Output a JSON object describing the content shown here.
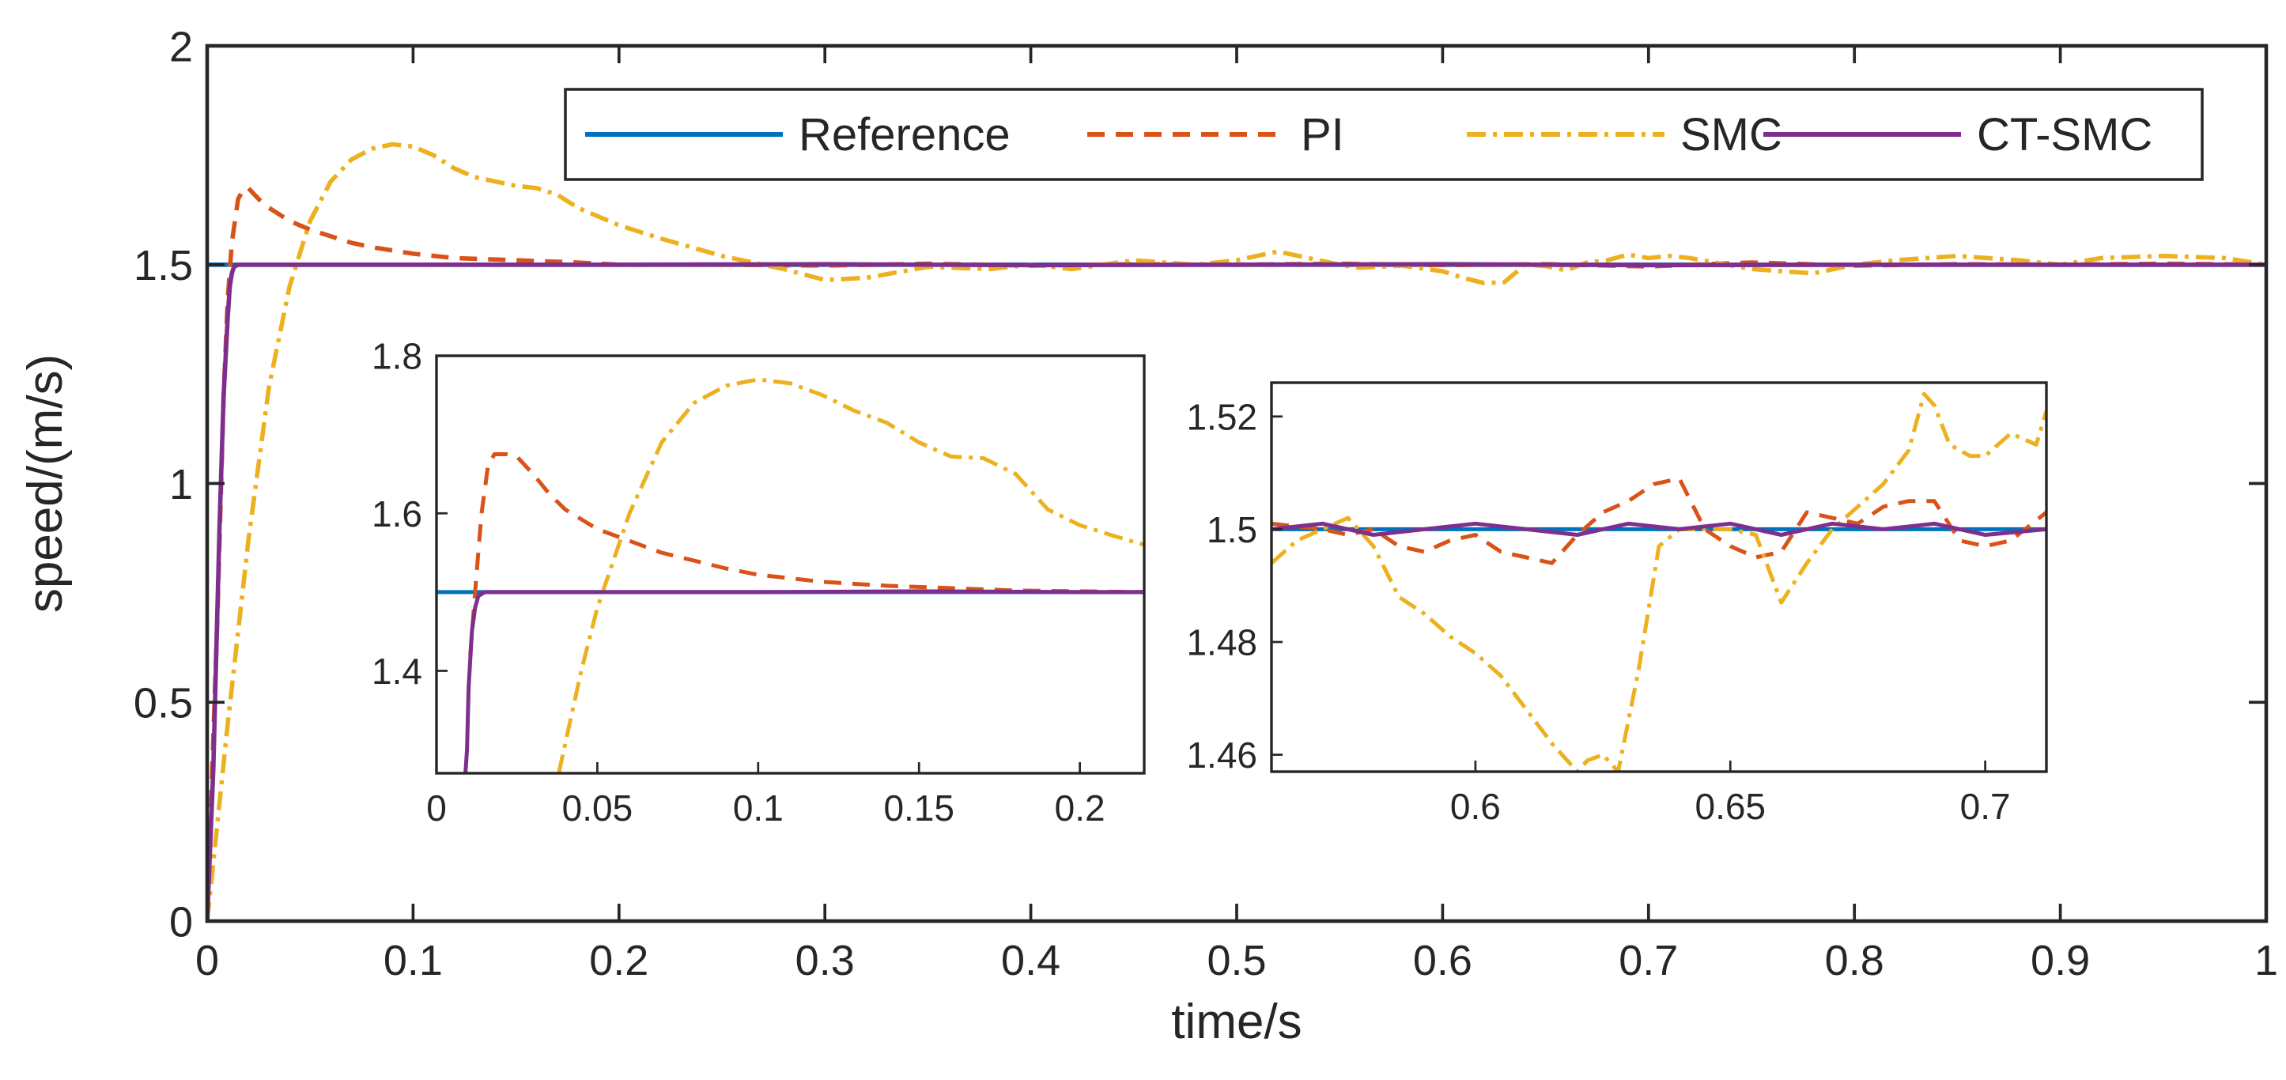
{
  "colors": {
    "reference": "#0072BD",
    "pi": "#D95319",
    "smc": "#EDB120",
    "ctsmc": "#7E2F8E",
    "axis": "#262626"
  },
  "chart_data": [
    {
      "id": "main",
      "type": "line",
      "xlabel": "time/s",
      "ylabel": "speed/(m/s)",
      "xlim": [
        0,
        1
      ],
      "ylim": [
        0,
        2
      ],
      "xticks": [
        0,
        0.1,
        0.2,
        0.3,
        0.4,
        0.5,
        0.6,
        0.7,
        0.8,
        0.9,
        1
      ],
      "xtick_labels": [
        "0",
        "0.1",
        "0.2",
        "0.3",
        "0.4",
        "0.5",
        "0.6",
        "0.7",
        "0.8",
        "0.9",
        "1"
      ],
      "yticks": [
        0,
        0.5,
        1,
        1.5,
        2
      ],
      "ytick_labels": [
        "0",
        "0.5",
        "1",
        "1.5",
        "2"
      ],
      "legend": {
        "placement": "top-right",
        "orientation": "horizontal",
        "entries": [
          "Reference",
          "PI",
          "SMC",
          "CT-SMC"
        ]
      },
      "series": [
        {
          "name": "Reference",
          "style": "solid",
          "x": [
            0,
            1
          ],
          "y": [
            1.5,
            1.5
          ]
        },
        {
          "name": "PI",
          "style": "dashed",
          "x": [
            0,
            0.005,
            0.008,
            0.01,
            0.012,
            0.015,
            0.018,
            0.02,
            0.025,
            0.03,
            0.04,
            0.05,
            0.06,
            0.07,
            0.08,
            0.1,
            0.12,
            0.15,
            0.18,
            0.2,
            0.25,
            0.3,
            0.35,
            0.4,
            0.45,
            0.5,
            0.55,
            0.6,
            0.65,
            0.7,
            0.75,
            0.8,
            0.85,
            0.9,
            0.95,
            1.0
          ],
          "y": [
            0,
            0.7,
            1.2,
            1.42,
            1.55,
            1.65,
            1.675,
            1.675,
            1.65,
            1.63,
            1.6,
            1.58,
            1.565,
            1.55,
            1.54,
            1.525,
            1.515,
            1.51,
            1.505,
            1.5,
            1.5,
            1.498,
            1.502,
            1.498,
            1.501,
            1.5,
            1.502,
            1.499,
            1.501,
            1.496,
            1.505,
            1.498,
            1.501,
            1.5,
            1.502,
            1.5
          ]
        },
        {
          "name": "SMC",
          "style": "dash-dot",
          "x": [
            0,
            0.01,
            0.02,
            0.03,
            0.04,
            0.05,
            0.06,
            0.07,
            0.08,
            0.09,
            0.1,
            0.11,
            0.12,
            0.13,
            0.14,
            0.15,
            0.16,
            0.17,
            0.18,
            0.2,
            0.22,
            0.25,
            0.28,
            0.3,
            0.32,
            0.35,
            0.38,
            0.4,
            0.42,
            0.45,
            0.48,
            0.5,
            0.52,
            0.55,
            0.56,
            0.58,
            0.6,
            0.61,
            0.62,
            0.63,
            0.64,
            0.65,
            0.66,
            0.67,
            0.68,
            0.69,
            0.7,
            0.71,
            0.72,
            0.75,
            0.78,
            0.8,
            0.82,
            0.85,
            0.88,
            0.9,
            0.92,
            0.95,
            0.98,
            1.0
          ],
          "y": [
            0,
            0.45,
            0.87,
            1.22,
            1.45,
            1.6,
            1.69,
            1.74,
            1.765,
            1.775,
            1.77,
            1.75,
            1.72,
            1.7,
            1.69,
            1.68,
            1.675,
            1.66,
            1.63,
            1.59,
            1.56,
            1.52,
            1.49,
            1.465,
            1.47,
            1.495,
            1.49,
            1.5,
            1.49,
            1.51,
            1.5,
            1.51,
            1.53,
            1.5,
            1.493,
            1.498,
            1.485,
            1.47,
            1.458,
            1.46,
            1.5,
            1.497,
            1.487,
            1.505,
            1.51,
            1.523,
            1.515,
            1.52,
            1.515,
            1.49,
            1.48,
            1.5,
            1.51,
            1.52,
            1.51,
            1.5,
            1.515,
            1.52,
            1.515,
            1.5
          ]
        },
        {
          "name": "CT-SMC",
          "style": "solid",
          "x": [
            0,
            0.003,
            0.006,
            0.008,
            0.01,
            0.011,
            0.012,
            0.013,
            0.015,
            0.02,
            0.05,
            0.1,
            0.2,
            0.3,
            0.4,
            0.5,
            0.6,
            0.7,
            0.8,
            0.9,
            1.0
          ],
          "y": [
            0,
            0.35,
            0.9,
            1.2,
            1.38,
            1.45,
            1.48,
            1.495,
            1.5,
            1.5,
            1.5,
            1.5,
            1.5,
            1.501,
            1.499,
            1.5,
            1.501,
            1.499,
            1.5,
            1.5,
            1.5
          ]
        }
      ]
    },
    {
      "id": "inset-left",
      "type": "line",
      "xlim": [
        0,
        0.22
      ],
      "ylim": [
        1.27,
        1.8
      ],
      "xticks": [
        0,
        0.05,
        0.1,
        0.15,
        0.2
      ],
      "xtick_labels": [
        "0",
        "0.05",
        "0.1",
        "0.15",
        "0.2"
      ],
      "yticks": [
        1.4,
        1.6,
        1.8
      ],
      "ytick_labels": [
        "1.4",
        "1.6",
        "1.8"
      ],
      "series": [
        {
          "name": "Reference",
          "style": "solid",
          "x": [
            0,
            0.22
          ],
          "y": [
            1.5,
            1.5
          ]
        },
        {
          "name": "PI",
          "style": "dashed",
          "x": [
            0.0105,
            0.012,
            0.014,
            0.016,
            0.018,
            0.022,
            0.025,
            0.03,
            0.035,
            0.04,
            0.05,
            0.06,
            0.07,
            0.08,
            0.09,
            0.1,
            0.12,
            0.14,
            0.16,
            0.18,
            0.2,
            0.22
          ],
          "y": [
            1.42,
            1.5,
            1.6,
            1.66,
            1.675,
            1.675,
            1.672,
            1.65,
            1.625,
            1.605,
            1.58,
            1.565,
            1.55,
            1.54,
            1.53,
            1.522,
            1.513,
            1.508,
            1.505,
            1.502,
            1.501,
            1.5
          ]
        },
        {
          "name": "SMC",
          "style": "dash-dot",
          "x": [
            0.038,
            0.045,
            0.05,
            0.06,
            0.07,
            0.08,
            0.09,
            0.1,
            0.11,
            0.12,
            0.13,
            0.14,
            0.15,
            0.16,
            0.17,
            0.18,
            0.19,
            0.2,
            0.21,
            0.22
          ],
          "y": [
            1.27,
            1.4,
            1.48,
            1.6,
            1.69,
            1.74,
            1.762,
            1.77,
            1.765,
            1.75,
            1.73,
            1.715,
            1.69,
            1.672,
            1.67,
            1.65,
            1.605,
            1.585,
            1.572,
            1.56
          ]
        },
        {
          "name": "CT-SMC",
          "style": "solid",
          "x": [
            0.009,
            0.0095,
            0.01,
            0.011,
            0.012,
            0.013,
            0.015,
            0.02,
            0.05,
            0.1,
            0.15,
            0.2,
            0.22
          ],
          "y": [
            1.27,
            1.3,
            1.38,
            1.45,
            1.48,
            1.495,
            1.5,
            1.5,
            1.5,
            1.5,
            1.501,
            1.5,
            1.5
          ]
        }
      ]
    },
    {
      "id": "inset-right",
      "type": "line",
      "xlim": [
        0.56,
        0.712
      ],
      "ylim": [
        1.457,
        1.526
      ],
      "xticks": [
        0.6,
        0.65,
        0.7
      ],
      "xtick_labels": [
        "0.6",
        "0.65",
        "0.7"
      ],
      "yticks": [
        1.46,
        1.48,
        1.5,
        1.52
      ],
      "ytick_labels": [
        "1.46",
        "1.48",
        "1.5",
        "1.52"
      ],
      "series": [
        {
          "name": "Reference",
          "style": "solid",
          "x": [
            0.56,
            0.712
          ],
          "y": [
            1.5,
            1.5
          ]
        },
        {
          "name": "PI",
          "style": "dashed",
          "x": [
            0.56,
            0.57,
            0.575,
            0.58,
            0.585,
            0.59,
            0.595,
            0.6,
            0.605,
            0.61,
            0.615,
            0.62,
            0.625,
            0.63,
            0.635,
            0.64,
            0.645,
            0.65,
            0.655,
            0.66,
            0.665,
            0.67,
            0.675,
            0.68,
            0.685,
            0.69,
            0.695,
            0.7,
            0.705,
            0.712
          ],
          "y": [
            1.501,
            1.5,
            1.499,
            1.5,
            1.497,
            1.496,
            1.498,
            1.499,
            1.496,
            1.495,
            1.494,
            1.499,
            1.503,
            1.505,
            1.508,
            1.509,
            1.5,
            1.497,
            1.495,
            1.496,
            1.503,
            1.502,
            1.501,
            1.504,
            1.505,
            1.505,
            1.498,
            1.497,
            1.498,
            1.503
          ]
        },
        {
          "name": "SMC",
          "style": "dash-dot",
          "x": [
            0.56,
            0.565,
            0.57,
            0.575,
            0.58,
            0.585,
            0.59,
            0.595,
            0.6,
            0.605,
            0.61,
            0.615,
            0.62,
            0.622,
            0.625,
            0.628,
            0.632,
            0.636,
            0.64,
            0.645,
            0.65,
            0.655,
            0.66,
            0.665,
            0.67,
            0.675,
            0.68,
            0.685,
            0.688,
            0.69,
            0.693,
            0.697,
            0.7,
            0.705,
            0.71,
            0.712
          ],
          "y": [
            1.494,
            1.498,
            1.5,
            1.502,
            1.497,
            1.488,
            1.485,
            1.481,
            1.478,
            1.474,
            1.468,
            1.462,
            1.457,
            1.459,
            1.46,
            1.457,
            1.475,
            1.497,
            1.5,
            1.5,
            1.5,
            1.499,
            1.487,
            1.494,
            1.5,
            1.504,
            1.508,
            1.514,
            1.524,
            1.522,
            1.515,
            1.513,
            1.513,
            1.517,
            1.515,
            1.521
          ]
        },
        {
          "name": "CT-SMC",
          "style": "solid",
          "x": [
            0.56,
            0.57,
            0.58,
            0.59,
            0.6,
            0.61,
            0.62,
            0.63,
            0.64,
            0.65,
            0.66,
            0.67,
            0.68,
            0.69,
            0.7,
            0.712
          ],
          "y": [
            1.5,
            1.501,
            1.499,
            1.5,
            1.501,
            1.5,
            1.499,
            1.501,
            1.5,
            1.501,
            1.499,
            1.501,
            1.5,
            1.501,
            1.499,
            1.5
          ]
        }
      ]
    }
  ]
}
